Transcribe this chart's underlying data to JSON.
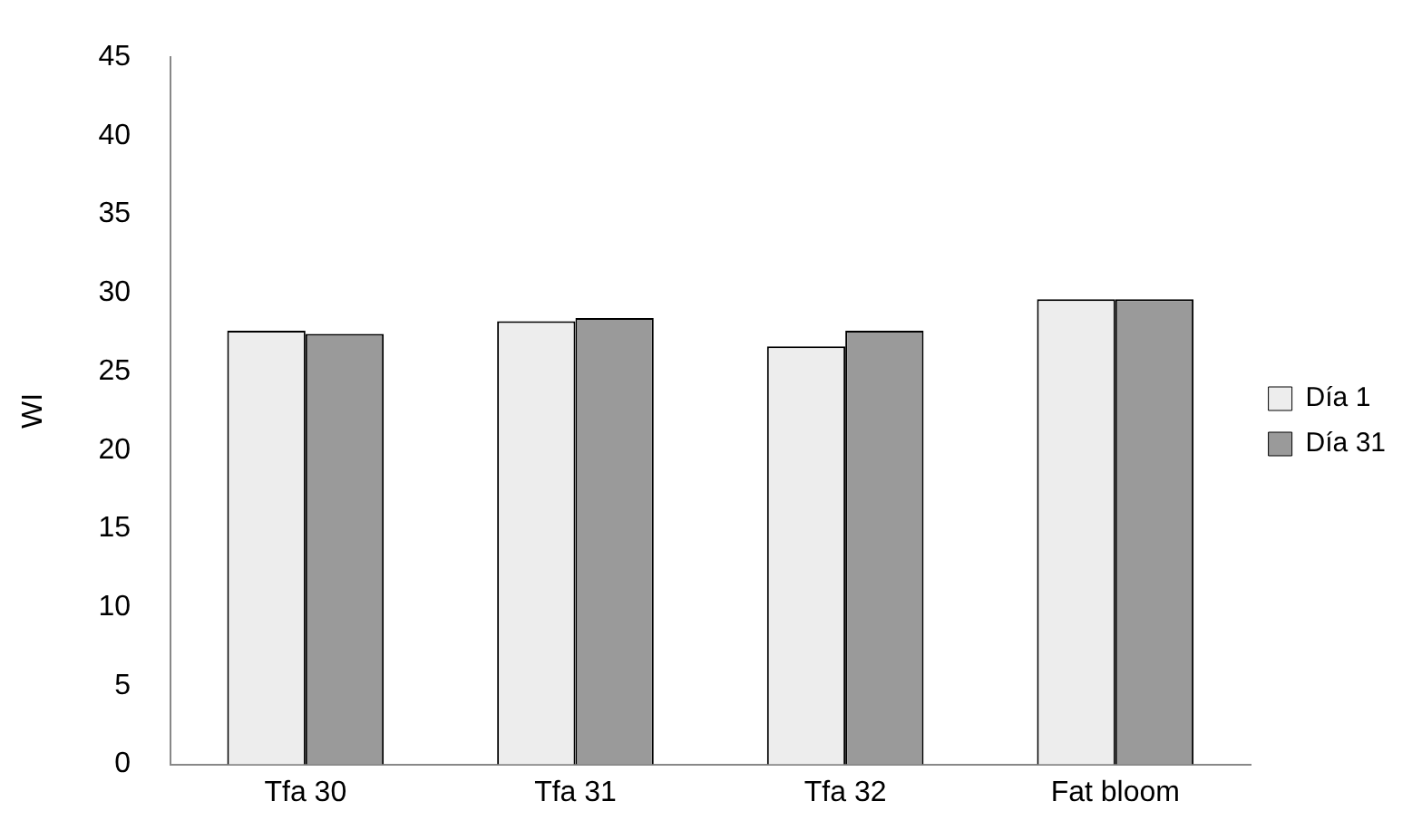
{
  "chart_data": {
    "type": "bar",
    "ylabel": "WI",
    "categories": [
      "Tfa 30",
      "Tfa 31",
      "Tfa 32",
      "Fat bloom"
    ],
    "series": [
      {
        "name": "Día 1",
        "color": "#ededed",
        "values": [
          27.6,
          28.2,
          26.6,
          29.6
        ]
      },
      {
        "name": "Día 31",
        "color": "#9a9a9a",
        "values": [
          27.4,
          28.4,
          27.6,
          29.6
        ]
      }
    ],
    "ylim": [
      0,
      45
    ],
    "yticks": [
      0,
      5,
      10,
      15,
      20,
      25,
      30,
      35,
      40,
      45
    ],
    "grid": false,
    "legend": "right"
  }
}
